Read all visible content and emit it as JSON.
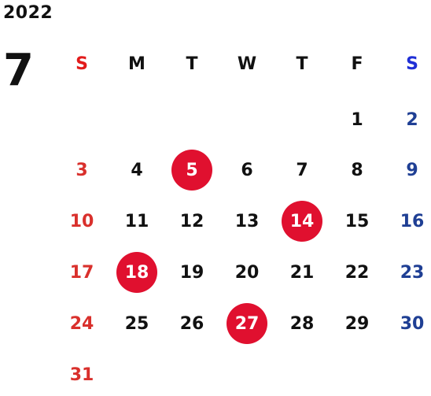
{
  "year": "2022",
  "month": "7",
  "weekday_headers": [
    "S",
    "M",
    "T",
    "W",
    "T",
    "F",
    "S"
  ],
  "weeks": [
    [
      "",
      "",
      "",
      "",
      "",
      "1",
      "2"
    ],
    [
      "3",
      "4",
      "5",
      "6",
      "7",
      "8",
      "9"
    ],
    [
      "10",
      "11",
      "12",
      "13",
      "14",
      "15",
      "16"
    ],
    [
      "17",
      "18",
      "19",
      "20",
      "21",
      "22",
      "23"
    ],
    [
      "24",
      "25",
      "26",
      "27",
      "28",
      "29",
      "30"
    ],
    [
      "31",
      "",
      "",
      "",
      "",
      "",
      ""
    ]
  ],
  "highlighted_days": [
    "5",
    "14",
    "18",
    "27"
  ],
  "colors": {
    "sunday": "#d9302c",
    "saturday": "#1f3f94",
    "weekday": "#111111",
    "highlight_fill": "#e0102f",
    "highlight_text": "#ffffff"
  }
}
